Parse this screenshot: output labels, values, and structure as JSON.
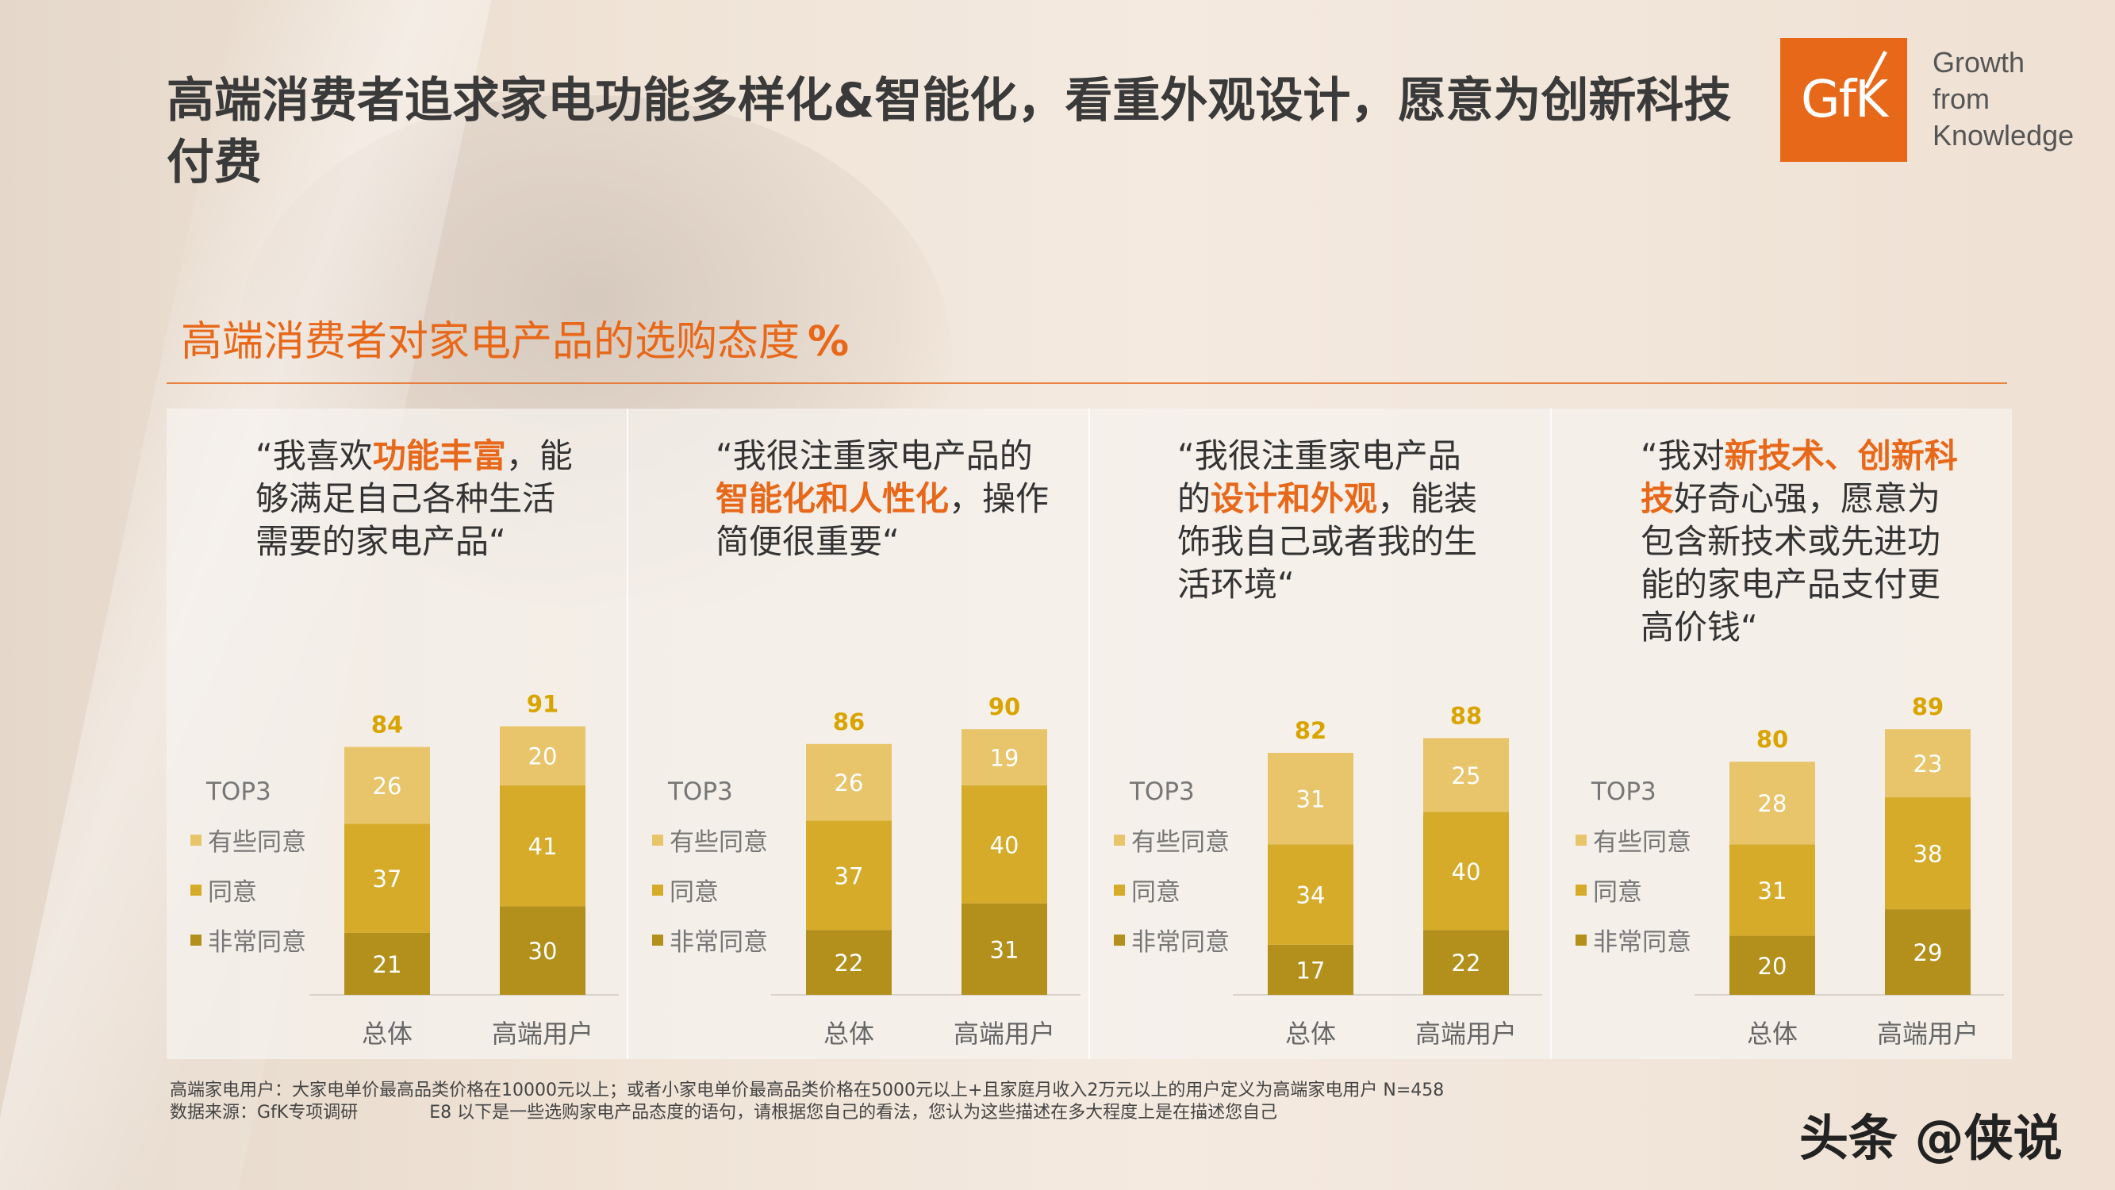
{
  "title": "高端消费者追求家电功能多样化&智能化，看重外观设计，愿意为创新科技付费",
  "logo": {
    "text": "GfK",
    "tagline_1": "Growth",
    "tagline_2": "from",
    "tagline_3": "Knowledge",
    "color": "#e8681a"
  },
  "subtitle": {
    "text": "高端消费者对家电产品的选购态度",
    "unit": "%"
  },
  "colors": {
    "some_agree": "#e8c46a",
    "agree": "#d6ab2a",
    "strongly_agree": "#b38f1b",
    "accent": "#e8681a",
    "top_label": "#d9a400"
  },
  "chart_data": [
    {
      "type": "bar",
      "stacked": true,
      "quote": {
        "pre": "“我喜欢",
        "hl": "功能丰富",
        "post": "，能够满足自己各种生活 需要的家电产品“"
      },
      "legend_title": "TOP3",
      "categories": [
        "总体",
        "高端用户"
      ],
      "series": [
        {
          "name": "非常同意",
          "values": [
            21,
            30
          ]
        },
        {
          "name": "同意",
          "values": [
            37,
            41
          ]
        },
        {
          "name": "有些同意",
          "values": [
            26,
            20
          ]
        }
      ],
      "totals": [
        84,
        91
      ]
    },
    {
      "type": "bar",
      "stacked": true,
      "quote": {
        "pre": "“我很注重家电产品的",
        "hl": "智能化和人性化",
        "post": "，操作简便很重要“"
      },
      "legend_title": "TOP3",
      "categories": [
        "总体",
        "高端用户"
      ],
      "series": [
        {
          "name": "非常同意",
          "values": [
            22,
            31
          ]
        },
        {
          "name": "同意",
          "values": [
            37,
            40
          ]
        },
        {
          "name": "有些同意",
          "values": [
            26,
            19
          ]
        }
      ],
      "totals": [
        86,
        90
      ]
    },
    {
      "type": "bar",
      "stacked": true,
      "quote": {
        "pre": "“我很注重家电产品的",
        "hl": "设计和外观",
        "post": "，能装饰我自己或者我的生活环境“"
      },
      "legend_title": "TOP3",
      "categories": [
        "总体",
        "高端用户"
      ],
      "series": [
        {
          "name": "非常同意",
          "values": [
            17,
            22
          ]
        },
        {
          "name": "同意",
          "values": [
            34,
            40
          ]
        },
        {
          "name": "有些同意",
          "values": [
            31,
            25
          ]
        }
      ],
      "totals": [
        82,
        88
      ]
    },
    {
      "type": "bar",
      "stacked": true,
      "quote": {
        "pre": "“我对",
        "hl": "新技术、创新科技",
        "post": "好奇心强，愿意为 包含新技术或先进功能的家电产品支付更 高价钱“"
      },
      "legend_title": "TOP3",
      "categories": [
        "总体",
        "高端用户"
      ],
      "series": [
        {
          "name": "非常同意",
          "values": [
            20,
            29
          ]
        },
        {
          "name": "同意",
          "values": [
            31,
            38
          ]
        },
        {
          "name": "有些同意",
          "values": [
            28,
            23
          ]
        }
      ],
      "totals": [
        80,
        89
      ]
    }
  ],
  "footnote_1": "高端家电用户：大家电单价最高品类价格在10000元以上；或者小家电单价最高品类价格在5000元以上+且家庭月收入2万元以上的用户定义为高端家电用户 N=458",
  "footnote_2_source": "数据来源：GfK专项调研",
  "footnote_2_question": "E8 以下是一些选购家电产品态度的语句，请根据您自己的看法，您认为这些描述在多大程度上是在描述您自己",
  "watermark": "头条 @侠说"
}
